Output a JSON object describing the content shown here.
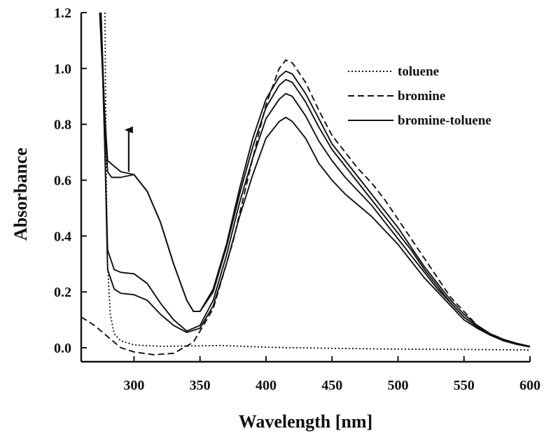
{
  "chart_data": {
    "type": "line",
    "xlabel": "Wavelength [nm]",
    "ylabel": "Absorbance",
    "xlim": [
      260,
      600
    ],
    "ylim": [
      -0.05,
      1.2
    ],
    "x_ticks": [
      300,
      350,
      400,
      450,
      500,
      550,
      600
    ],
    "y_ticks": [
      0.0,
      0.2,
      0.4,
      0.6,
      0.8,
      1.0,
      1.2
    ],
    "x_tick_labels": [
      "300",
      "350",
      "400",
      "450",
      "500",
      "550",
      "600"
    ],
    "y_tick_labels": [
      "0.0",
      "0.2",
      "0.4",
      "0.6",
      "0.8",
      "1.0",
      "1.2"
    ],
    "grid": false,
    "legend_position": "top-right",
    "legend": [
      {
        "label": "toluene",
        "style": "dotted"
      },
      {
        "label": "bromine",
        "style": "dashed"
      },
      {
        "label": "bromine-toluene",
        "style": "solid"
      }
    ],
    "annotation": {
      "type": "arrow",
      "direction": "up",
      "x": 296,
      "y_from": 0.63,
      "y_to": 0.78
    },
    "series": [
      {
        "name": "toluene",
        "style": "dotted",
        "points": [
          [
            278,
            1.2
          ],
          [
            279,
            0.6
          ],
          [
            280,
            0.3
          ],
          [
            282,
            0.12
          ],
          [
            285,
            0.05
          ],
          [
            290,
            0.025
          ],
          [
            300,
            0.01
          ],
          [
            320,
            0.005
          ],
          [
            366,
            0.008
          ],
          [
            400,
            0.002
          ],
          [
            450,
            -0.002
          ],
          [
            500,
            -0.005
          ],
          [
            550,
            -0.006
          ],
          [
            600,
            -0.008
          ]
        ]
      },
      {
        "name": "bromine",
        "style": "dashed",
        "points": [
          [
            260,
            0.11
          ],
          [
            270,
            0.08
          ],
          [
            280,
            0.04
          ],
          [
            290,
            0.0
          ],
          [
            300,
            -0.015
          ],
          [
            315,
            -0.025
          ],
          [
            330,
            -0.02
          ],
          [
            345,
            0.02
          ],
          [
            360,
            0.14
          ],
          [
            375,
            0.38
          ],
          [
            390,
            0.68
          ],
          [
            400,
            0.87
          ],
          [
            410,
            1.0
          ],
          [
            415,
            1.03
          ],
          [
            420,
            1.02
          ],
          [
            430,
            0.95
          ],
          [
            440,
            0.85
          ],
          [
            450,
            0.76
          ],
          [
            460,
            0.7
          ],
          [
            470,
            0.64
          ],
          [
            480,
            0.59
          ],
          [
            490,
            0.53
          ],
          [
            500,
            0.46
          ],
          [
            510,
            0.39
          ],
          [
            520,
            0.32
          ],
          [
            530,
            0.25
          ],
          [
            540,
            0.18
          ],
          [
            550,
            0.13
          ],
          [
            560,
            0.08
          ],
          [
            570,
            0.05
          ],
          [
            580,
            0.03
          ],
          [
            590,
            0.015
          ],
          [
            600,
            0.005
          ]
        ]
      },
      {
        "name": "bromine-toluene 1",
        "style": "solid",
        "points": [
          [
            275,
            1.2
          ],
          [
            278,
            0.7
          ],
          [
            280,
            0.28
          ],
          [
            285,
            0.21
          ],
          [
            290,
            0.195
          ],
          [
            300,
            0.19
          ],
          [
            310,
            0.17
          ],
          [
            320,
            0.12
          ],
          [
            330,
            0.08
          ],
          [
            340,
            0.055
          ],
          [
            350,
            0.07
          ],
          [
            360,
            0.15
          ],
          [
            370,
            0.3
          ],
          [
            380,
            0.47
          ],
          [
            390,
            0.62
          ],
          [
            400,
            0.75
          ],
          [
            410,
            0.81
          ],
          [
            415,
            0.825
          ],
          [
            420,
            0.81
          ],
          [
            430,
            0.75
          ],
          [
            440,
            0.66
          ],
          [
            450,
            0.6
          ],
          [
            460,
            0.55
          ],
          [
            470,
            0.51
          ],
          [
            480,
            0.47
          ],
          [
            490,
            0.42
          ],
          [
            500,
            0.37
          ],
          [
            510,
            0.31
          ],
          [
            520,
            0.25
          ],
          [
            530,
            0.2
          ],
          [
            540,
            0.15
          ],
          [
            550,
            0.1
          ],
          [
            560,
            0.07
          ],
          [
            570,
            0.045
          ],
          [
            580,
            0.025
          ],
          [
            590,
            0.012
          ],
          [
            600,
            0.003
          ]
        ]
      },
      {
        "name": "bromine-toluene 2",
        "style": "solid",
        "points": [
          [
            275,
            1.2
          ],
          [
            278,
            0.7
          ],
          [
            280,
            0.35
          ],
          [
            285,
            0.28
          ],
          [
            290,
            0.27
          ],
          [
            300,
            0.265
          ],
          [
            310,
            0.23
          ],
          [
            320,
            0.16
          ],
          [
            330,
            0.1
          ],
          [
            340,
            0.06
          ],
          [
            350,
            0.08
          ],
          [
            360,
            0.17
          ],
          [
            370,
            0.33
          ],
          [
            380,
            0.52
          ],
          [
            390,
            0.68
          ],
          [
            400,
            0.82
          ],
          [
            410,
            0.89
          ],
          [
            415,
            0.91
          ],
          [
            420,
            0.9
          ],
          [
            430,
            0.83
          ],
          [
            440,
            0.74
          ],
          [
            450,
            0.67
          ],
          [
            460,
            0.61
          ],
          [
            470,
            0.56
          ],
          [
            480,
            0.51
          ],
          [
            490,
            0.45
          ],
          [
            500,
            0.39
          ],
          [
            510,
            0.33
          ],
          [
            520,
            0.27
          ],
          [
            530,
            0.21
          ],
          [
            540,
            0.16
          ],
          [
            550,
            0.11
          ],
          [
            560,
            0.075
          ],
          [
            570,
            0.048
          ],
          [
            580,
            0.028
          ],
          [
            590,
            0.014
          ],
          [
            600,
            0.004
          ]
        ]
      },
      {
        "name": "bromine-toluene 3",
        "style": "solid",
        "points": [
          [
            275,
            1.2
          ],
          [
            278,
            0.8
          ],
          [
            280,
            0.63
          ],
          [
            283,
            0.61
          ],
          [
            290,
            0.61
          ],
          [
            300,
            0.62
          ],
          [
            310,
            0.56
          ],
          [
            320,
            0.45
          ],
          [
            330,
            0.3
          ],
          [
            340,
            0.17
          ],
          [
            345,
            0.13
          ],
          [
            350,
            0.13
          ],
          [
            360,
            0.2
          ],
          [
            370,
            0.36
          ],
          [
            380,
            0.55
          ],
          [
            390,
            0.72
          ],
          [
            400,
            0.86
          ],
          [
            410,
            0.94
          ],
          [
            415,
            0.96
          ],
          [
            420,
            0.95
          ],
          [
            430,
            0.88
          ],
          [
            440,
            0.79
          ],
          [
            450,
            0.71
          ],
          [
            460,
            0.65
          ],
          [
            470,
            0.59
          ],
          [
            480,
            0.53
          ],
          [
            490,
            0.47
          ],
          [
            500,
            0.41
          ],
          [
            510,
            0.35
          ],
          [
            520,
            0.28
          ],
          [
            530,
            0.22
          ],
          [
            540,
            0.16
          ],
          [
            550,
            0.11
          ],
          [
            560,
            0.075
          ],
          [
            570,
            0.048
          ],
          [
            580,
            0.028
          ],
          [
            590,
            0.014
          ],
          [
            600,
            0.004
          ]
        ]
      },
      {
        "name": "bromine-toluene 4",
        "style": "solid",
        "points": [
          [
            274,
            1.2
          ],
          [
            277,
            0.9
          ],
          [
            280,
            0.67
          ],
          [
            290,
            0.63
          ],
          [
            300,
            0.62
          ],
          [
            310,
            0.56
          ],
          [
            320,
            0.45
          ],
          [
            330,
            0.3
          ],
          [
            340,
            0.17
          ],
          [
            345,
            0.13
          ],
          [
            350,
            0.13
          ],
          [
            360,
            0.21
          ],
          [
            370,
            0.37
          ],
          [
            380,
            0.57
          ],
          [
            390,
            0.75
          ],
          [
            400,
            0.89
          ],
          [
            410,
            0.97
          ],
          [
            415,
            0.99
          ],
          [
            420,
            0.98
          ],
          [
            430,
            0.91
          ],
          [
            440,
            0.82
          ],
          [
            450,
            0.73
          ],
          [
            460,
            0.67
          ],
          [
            470,
            0.61
          ],
          [
            480,
            0.55
          ],
          [
            490,
            0.49
          ],
          [
            500,
            0.43
          ],
          [
            510,
            0.36
          ],
          [
            520,
            0.29
          ],
          [
            530,
            0.23
          ],
          [
            540,
            0.17
          ],
          [
            550,
            0.12
          ],
          [
            560,
            0.08
          ],
          [
            570,
            0.05
          ],
          [
            580,
            0.03
          ],
          [
            590,
            0.016
          ],
          [
            600,
            0.005
          ]
        ]
      }
    ]
  }
}
